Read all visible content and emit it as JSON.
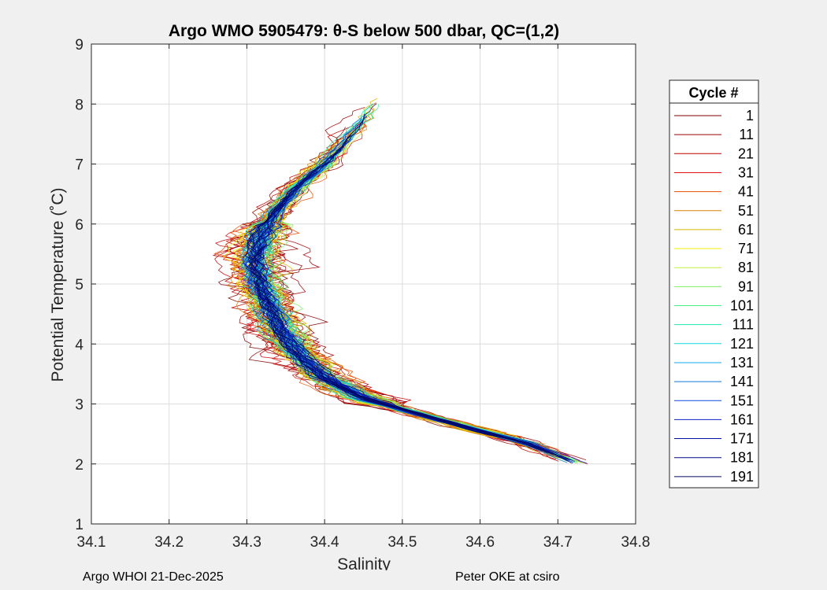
{
  "chart_data": {
    "type": "line",
    "title": "Argo WMO 5905479: θ-S below 500 dbar,  QC=(1,2)",
    "xlabel": "Salinity",
    "ylabel": "Potential Temperature (˚C)",
    "xlim": [
      34.1,
      34.8
    ],
    "ylim": [
      1,
      9
    ],
    "xticks": [
      "34.1",
      "34.2",
      "34.3",
      "34.4",
      "34.5",
      "34.6",
      "34.7",
      "34.8"
    ],
    "yticks": [
      "1",
      "2",
      "3",
      "4",
      "5",
      "6",
      "7",
      "8",
      "9"
    ],
    "grid": true,
    "legend": {
      "title": "Cycle #",
      "position": "right",
      "entries": [
        {
          "label": "1",
          "color": "#800000"
        },
        {
          "label": "11",
          "color": "#9b0000"
        },
        {
          "label": "21",
          "color": "#c00000"
        },
        {
          "label": "31",
          "color": "#e21010"
        },
        {
          "label": "41",
          "color": "#e84a00"
        },
        {
          "label": "51",
          "color": "#d88000"
        },
        {
          "label": "61",
          "color": "#d8b400"
        },
        {
          "label": "71",
          "color": "#f0f000"
        },
        {
          "label": "81",
          "color": "#c0f040"
        },
        {
          "label": "91",
          "color": "#80f060"
        },
        {
          "label": "101",
          "color": "#40f080"
        },
        {
          "label": "111",
          "color": "#20e8b0"
        },
        {
          "label": "121",
          "color": "#10d8e0"
        },
        {
          "label": "131",
          "color": "#10a8e8"
        },
        {
          "label": "141",
          "color": "#1078d8"
        },
        {
          "label": "151",
          "color": "#1048e0"
        },
        {
          "label": "161",
          "color": "#1020c8"
        },
        {
          "label": "171",
          "color": "#0010a8"
        },
        {
          "label": "181",
          "color": "#000c80"
        },
        {
          "label": "191",
          "color": "#000a60"
        }
      ]
    },
    "mean_profile": {
      "salinity": [
        34.473,
        34.455,
        34.43,
        34.4,
        34.365,
        34.338,
        34.318,
        34.312,
        34.318,
        34.33,
        34.345,
        34.37,
        34.4,
        34.45,
        34.53,
        34.6,
        34.66,
        34.735
      ],
      "temperature": [
        8.1,
        7.8,
        7.4,
        7.0,
        6.6,
        6.2,
        5.8,
        5.4,
        5.0,
        4.6,
        4.2,
        3.8,
        3.45,
        3.1,
        2.8,
        2.55,
        2.35,
        1.97
      ]
    }
  },
  "footer": {
    "left": "Argo WHOI 21-Dec-2025",
    "right": "Peter OKE at csiro"
  }
}
